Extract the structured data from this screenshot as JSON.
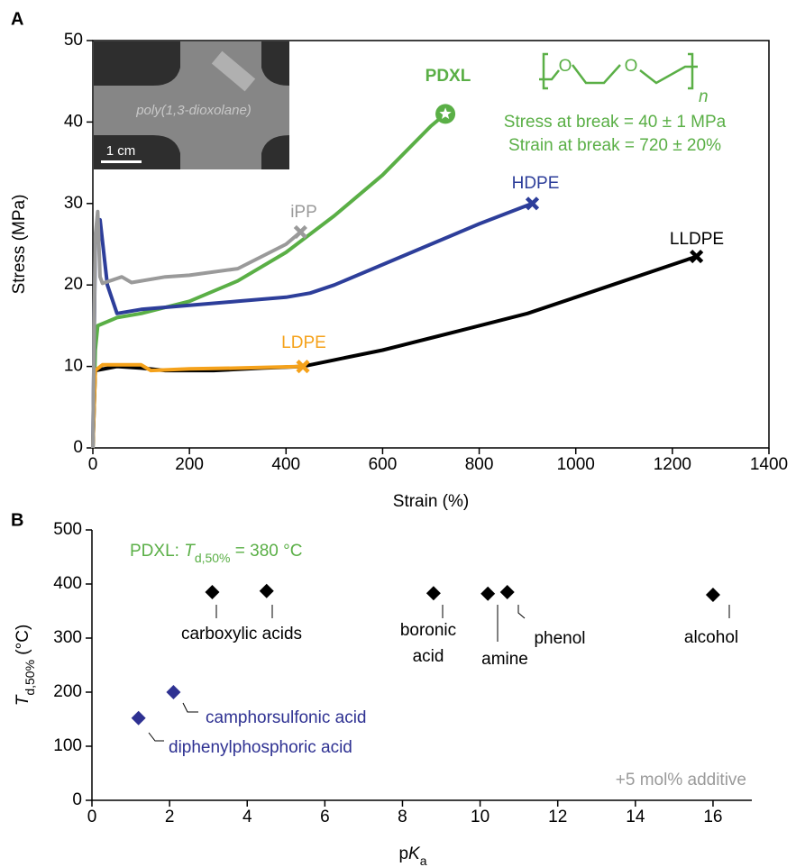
{
  "panel_labels": [
    "A",
    "B"
  ],
  "chart_data": [
    {
      "type": "line",
      "xlabel": "Strain (%)",
      "ylabel": "Stress (MPa)",
      "xlim": [
        0,
        1400
      ],
      "ylim": [
        0,
        50
      ],
      "xticks": [
        0,
        200,
        400,
        600,
        800,
        1000,
        1200,
        1400
      ],
      "yticks": [
        0,
        10,
        20,
        30,
        40,
        50
      ],
      "series": [
        {
          "name": "PDXL",
          "color": "#5aaf46",
          "marker": "star",
          "x": [
            0,
            5,
            10,
            50,
            100,
            200,
            300,
            400,
            500,
            600,
            700,
            730
          ],
          "values": [
            0,
            12,
            15,
            16,
            16.5,
            18,
            20.5,
            24,
            28.5,
            33.5,
            39.5,
            41
          ]
        },
        {
          "name": "HDPE",
          "color": "#2d3e9a",
          "marker": "x",
          "x": [
            0,
            5,
            15,
            30,
            50,
            100,
            200,
            300,
            400,
            450,
            500,
            600,
            700,
            800,
            910
          ],
          "values": [
            0,
            25,
            28,
            20,
            16.5,
            17,
            17.5,
            18,
            18.5,
            19,
            20,
            22.5,
            25,
            27.5,
            30
          ]
        },
        {
          "name": "LLDPE",
          "color": "#000000",
          "marker": "x",
          "x": [
            0,
            5,
            50,
            100,
            150,
            250,
            350,
            435,
            500,
            600,
            700,
            800,
            900,
            1000,
            1100,
            1200,
            1250
          ],
          "values": [
            0,
            9.5,
            10,
            9.8,
            9.5,
            9.5,
            9.8,
            10,
            10.8,
            12,
            13.5,
            15,
            16.5,
            18.5,
            20.5,
            22.5,
            23.5
          ]
        },
        {
          "name": "LDPE",
          "color": "#f5a21b",
          "marker": "x",
          "x": [
            0,
            5,
            20,
            100,
            120,
            200,
            300,
            435
          ],
          "values": [
            0,
            9.5,
            10.2,
            10.2,
            9.5,
            9.7,
            9.8,
            10
          ]
        },
        {
          "name": "iPP",
          "color": "#9a9a9a",
          "marker": "x",
          "x": [
            0,
            5,
            10,
            15,
            20,
            60,
            80,
            150,
            200,
            300,
            400,
            430
          ],
          "values": [
            0,
            26,
            29,
            21,
            20.2,
            21,
            20.3,
            21,
            21.2,
            22,
            25,
            26.5
          ]
        }
      ],
      "annotations": [
        {
          "text": "Stress at break = 40 ± 1 MPa",
          "color": "#5aaf46"
        },
        {
          "text": "Strain at break = 720 ± 20%",
          "color": "#5aaf46"
        }
      ],
      "structure_labels": [
        "O",
        "O",
        "n"
      ],
      "inset_labels": [
        "poly(1,3-dioxolane)",
        "1 cm"
      ]
    },
    {
      "type": "scatter",
      "xlabel": [
        "p",
        "K",
        "a"
      ],
      "ylabel": [
        "T",
        "d,50%",
        " (°C)"
      ],
      "xlim": [
        0,
        17
      ],
      "ylim": [
        0,
        500
      ],
      "xticks": [
        0,
        2,
        4,
        6,
        8,
        10,
        12,
        14,
        16
      ],
      "yticks": [
        0,
        100,
        200,
        300,
        400,
        500
      ],
      "series": [
        {
          "color": "#000000",
          "x": [
            3.1,
            4.5,
            8.8,
            10.2,
            10.7,
            16
          ],
          "values": [
            385,
            387,
            383,
            382,
            385,
            380
          ]
        },
        {
          "color": "#2e3192",
          "x": [
            1.2,
            2.1
          ],
          "values": [
            152,
            200
          ]
        }
      ],
      "annotations": [
        {
          "text": "carboxylic acids",
          "color": "#000000"
        },
        {
          "text": "boronic",
          "color": "#000000"
        },
        {
          "text": "acid",
          "color": "#000000"
        },
        {
          "text": "amine",
          "color": "#000000"
        },
        {
          "text": "phenol",
          "color": "#000000"
        },
        {
          "text": "alcohol",
          "color": "#000000"
        },
        {
          "text": "camphorsulfonic acid",
          "color": "#2e3192"
        },
        {
          "text": "diphenylphosphoric acid",
          "color": "#2e3192"
        },
        {
          "text": "+5 mol% additive",
          "color": "#9a9a9a"
        }
      ],
      "pdxl_note": {
        "parts": [
          "PDXL: ",
          "T",
          "d,50%",
          " = 380 °C"
        ],
        "color": "#5aaf46"
      }
    }
  ]
}
